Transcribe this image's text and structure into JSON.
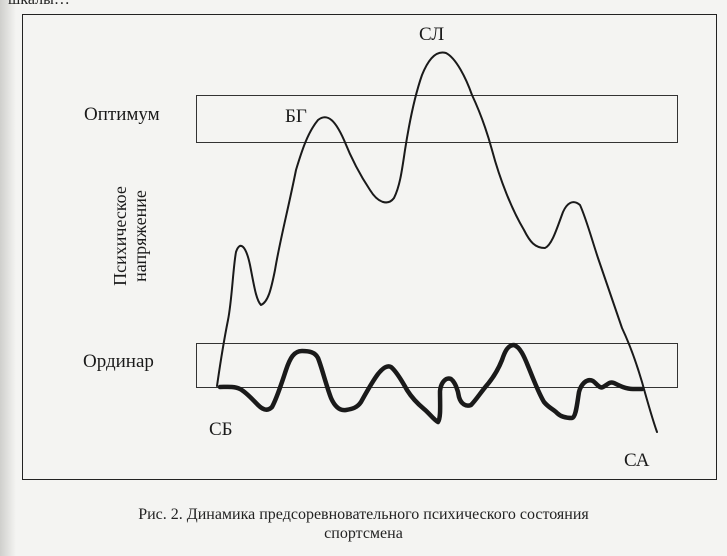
{
  "header_fragment": "шкалы…",
  "bands": {
    "optimum": "Оптимум",
    "ordinar": "Ординар"
  },
  "y_axis": {
    "line1": "Психическое",
    "line2": "напряжение"
  },
  "points": {
    "bg": "БГ",
    "sl": "СЛ",
    "sb": "СБ",
    "sa": "СА"
  },
  "caption": {
    "line1": "Рис. 2. Динамика предсоревновательного психического состояния",
    "line2": "спортсмена"
  },
  "colors": {
    "ink": "#1a1a1a",
    "paper": "#f4f4f2"
  }
}
